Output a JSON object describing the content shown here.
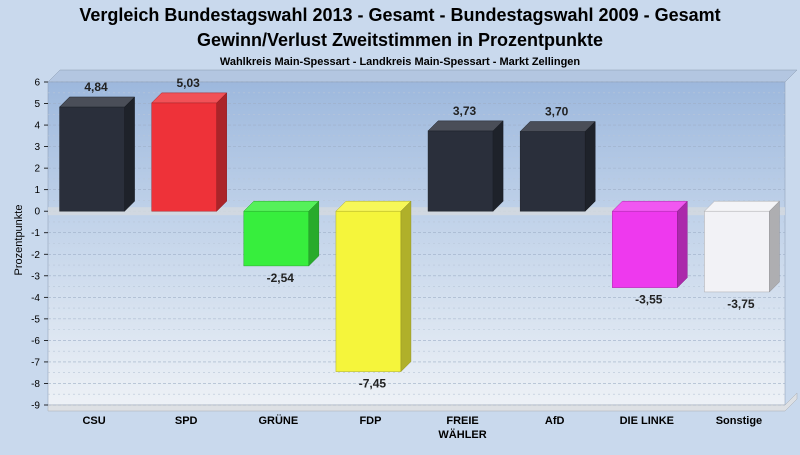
{
  "chart_data": {
    "type": "bar",
    "title": "Vergleich Bundestagswahl 2013 - Gesamt - Bundestagswahl 2009 - Gesamt",
    "title2": "Gewinn/Verlust Zweitstimmen in Prozentpunkte",
    "subtitle": "Wahlkreis Main-Spessart - Landkreis Main-Spessart - Markt Zellingen",
    "ylabel": "Prozentpunkte",
    "xlabel": "",
    "ylim": [
      -9,
      6
    ],
    "yticks": [
      "6",
      "5",
      "4",
      "3",
      "2",
      "1",
      "0",
      "-1",
      "-2",
      "-3",
      "-4",
      "-5",
      "-6",
      "-7",
      "-8",
      "-9"
    ],
    "grid": true,
    "categories": [
      "CSU",
      "SPD",
      "GRÜNE",
      "FDP",
      "FREIE WÄHLER",
      "AfD",
      "DIE LINKE",
      "Sonstige"
    ],
    "category_lines": [
      [
        "CSU"
      ],
      [
        "SPD"
      ],
      [
        "GRÜNE"
      ],
      [
        "FDP"
      ],
      [
        "FREIE",
        "WÄHLER"
      ],
      [
        "AfD"
      ],
      [
        "DIE LINKE"
      ],
      [
        "Sonstige"
      ]
    ],
    "values": [
      4.84,
      5.03,
      -2.54,
      -7.45,
      3.73,
      3.7,
      -3.55,
      -3.75
    ],
    "value_labels": [
      "4,84",
      "5,03",
      "-2,54",
      "-7,45",
      "3,73",
      "3,70",
      "-3,55",
      "-3,75"
    ],
    "colors": [
      "#2a2f3b",
      "#ee3239",
      "#37ee3d",
      "#f5f53b",
      "#2a2f3b",
      "#2a2f3b",
      "#ee39ee",
      "#f2f2f6"
    ]
  }
}
